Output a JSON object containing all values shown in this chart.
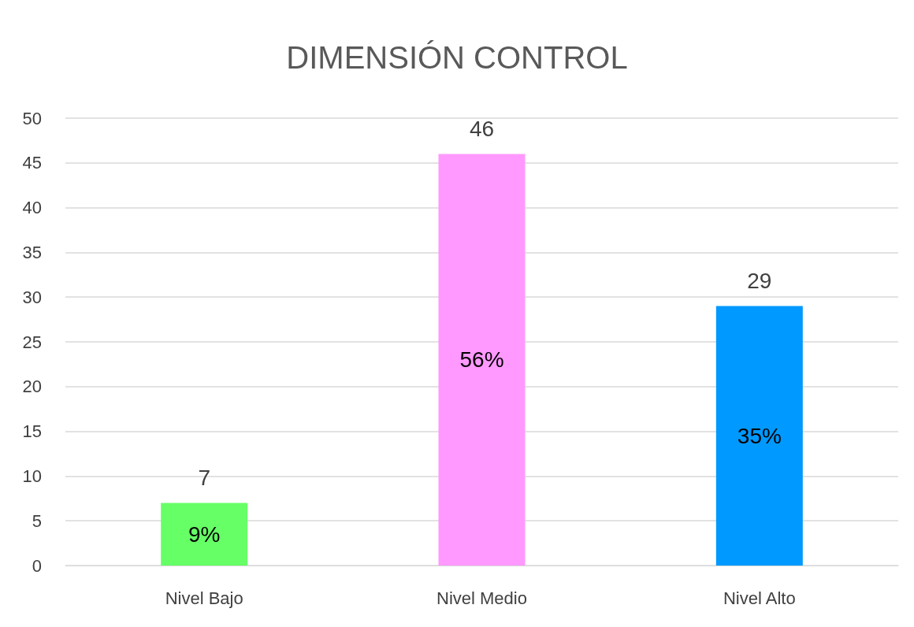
{
  "chart_data": {
    "type": "bar",
    "title": "DIMENSIÓN CONTROL",
    "categories": [
      "Nivel Bajo",
      "Nivel Medio",
      "Nivel Alto"
    ],
    "values": [
      7,
      46,
      29
    ],
    "colors": [
      "#66ff66",
      "#ff99ff",
      "#0099ff"
    ],
    "data_labels": true,
    "annotations": [
      "9%",
      "56%",
      "35%"
    ],
    "ylim": [
      0,
      50
    ],
    "yticks": [
      0,
      5,
      10,
      15,
      20,
      25,
      30,
      35,
      40,
      45,
      50
    ],
    "grid": "y"
  }
}
